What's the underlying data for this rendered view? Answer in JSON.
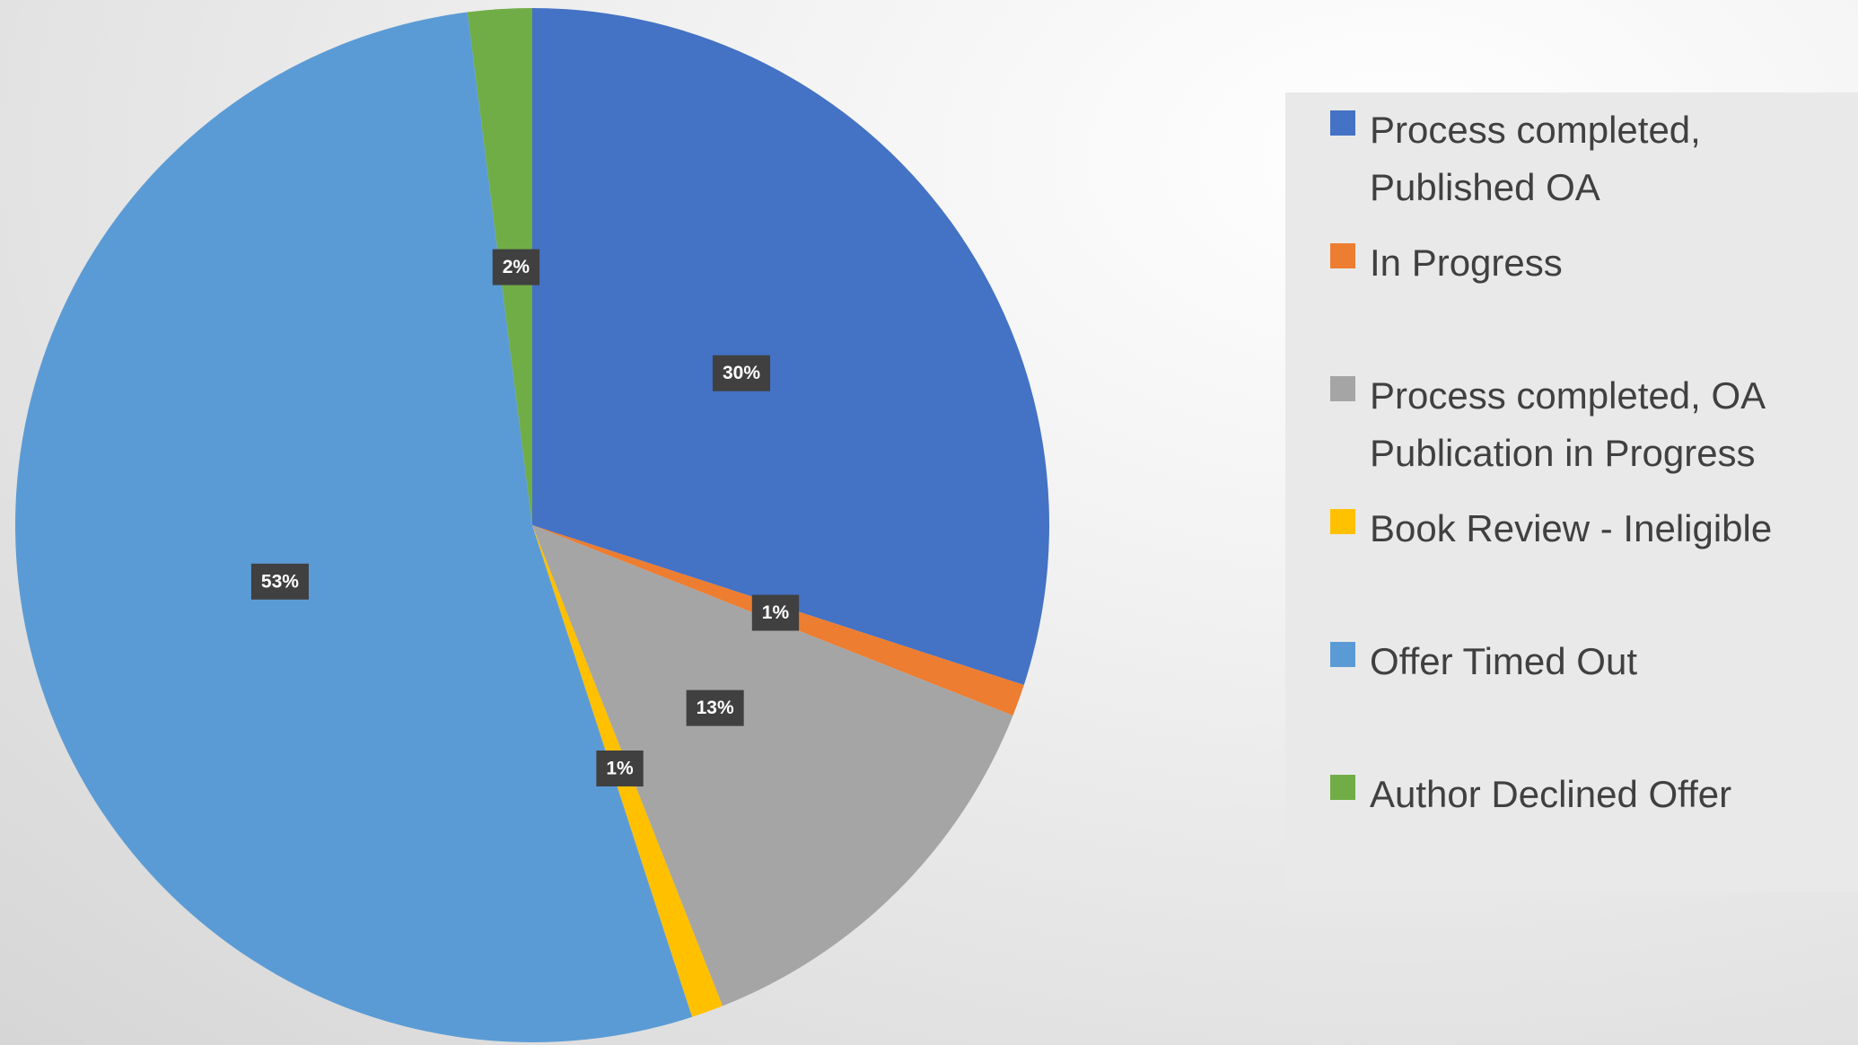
{
  "chart_data": {
    "type": "pie",
    "categories": [
      "Process completed, Published OA",
      "In Progress",
      "Process completed, OA Publication in Progress",
      "Book Review - Ineligible",
      "Offer Timed Out",
      "Author Declined Offer"
    ],
    "values": [
      30,
      1,
      13,
      1,
      53,
      2
    ],
    "value_labels": [
      "30%",
      "1%",
      "13%",
      "1%",
      "53%",
      "2%"
    ],
    "colors": [
      "#4472c4",
      "#ed7d31",
      "#a5a5a5",
      "#ffc000",
      "#5b9bd5",
      "#70ad47"
    ],
    "legend": "right"
  }
}
